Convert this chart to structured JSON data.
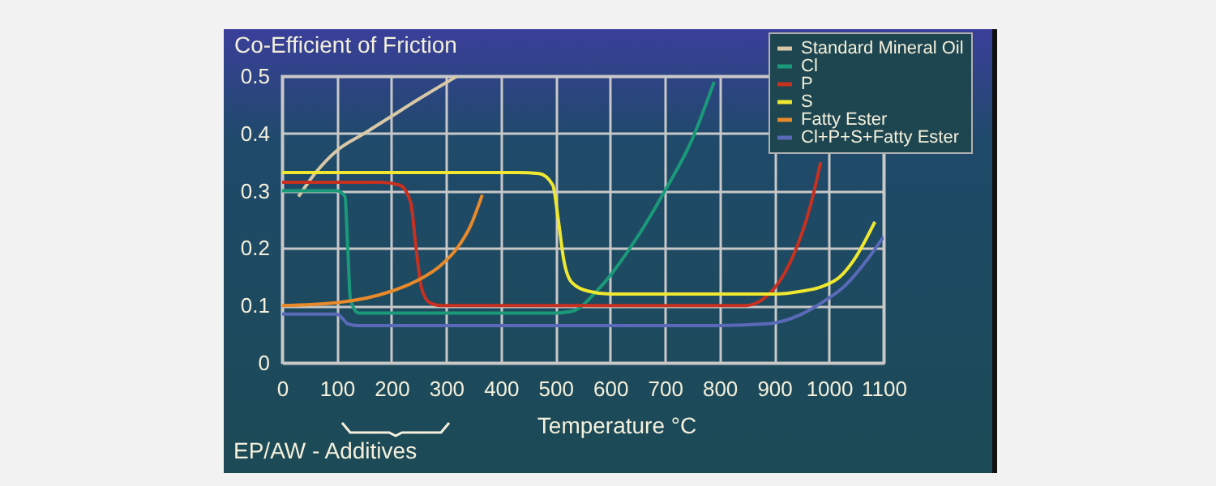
{
  "chart_data": {
    "type": "line",
    "ylabel": "Co-Efficient of Friction",
    "xlabel": "Temperature °C",
    "annotations": [
      "EP/AW - Additives"
    ],
    "xlim": [
      0,
      1100
    ],
    "xticks": [
      0,
      100,
      200,
      300,
      400,
      500,
      600,
      700,
      800,
      900,
      1000,
      1100
    ],
    "ylim": [
      0,
      0.5
    ],
    "yticks": [
      0,
      0.1,
      0.2,
      0.3,
      0.4,
      0.5
    ],
    "grid": true,
    "legend": "top right",
    "series": [
      {
        "name": "Standard Mineral Oil",
        "color": "#d8c8a8",
        "x": [
          30,
          60,
          100,
          150,
          200,
          250,
          320
        ],
        "values": [
          0.29,
          0.33,
          0.37,
          0.4,
          0.43,
          0.46,
          0.5
        ]
      },
      {
        "name": "Cl",
        "color": "#1a9a78",
        "x": [
          0,
          100,
          115,
          120,
          125,
          140,
          200,
          500,
          530,
          580,
          650,
          700,
          750,
          790
        ],
        "values": [
          0.3,
          0.3,
          0.29,
          0.2,
          0.11,
          0.087,
          0.087,
          0.087,
          0.09,
          0.13,
          0.22,
          0.3,
          0.39,
          0.49
        ]
      },
      {
        "name": "P",
        "color": "#c83020",
        "x": [
          0,
          180,
          215,
          235,
          245,
          255,
          270,
          290,
          400,
          800,
          847,
          900,
          936,
          965,
          985
        ],
        "values": [
          0.315,
          0.315,
          0.31,
          0.28,
          0.2,
          0.13,
          0.105,
          0.1,
          0.1,
          0.1,
          0.1,
          0.13,
          0.19,
          0.27,
          0.35
        ]
      },
      {
        "name": "S",
        "color": "#f0e830",
        "x": [
          0,
          430,
          470,
          495,
          505,
          515,
          530,
          560,
          600,
          900,
          950,
          987,
          1020,
          1046,
          1084
        ],
        "values": [
          0.332,
          0.332,
          0.33,
          0.31,
          0.25,
          0.18,
          0.14,
          0.125,
          0.12,
          0.12,
          0.125,
          0.133,
          0.15,
          0.18,
          0.246
        ]
      },
      {
        "name": "Fatty Ester",
        "color": "#e88a2a",
        "x": [
          0,
          100,
          200,
          250,
          290,
          320,
          345,
          366
        ],
        "values": [
          0.1,
          0.105,
          0.125,
          0.145,
          0.17,
          0.2,
          0.24,
          0.293
        ]
      },
      {
        "name": "Cl+P+S+Fatty Ester",
        "color": "#5a6ab8",
        "x": [
          0,
          100,
          110,
          120,
          140,
          400,
          800,
          886,
          950,
          987,
          1030,
          1070,
          1100
        ],
        "values": [
          0.085,
          0.085,
          0.078,
          0.068,
          0.065,
          0.065,
          0.065,
          0.068,
          0.085,
          0.105,
          0.135,
          0.18,
          0.22
        ]
      }
    ]
  }
}
